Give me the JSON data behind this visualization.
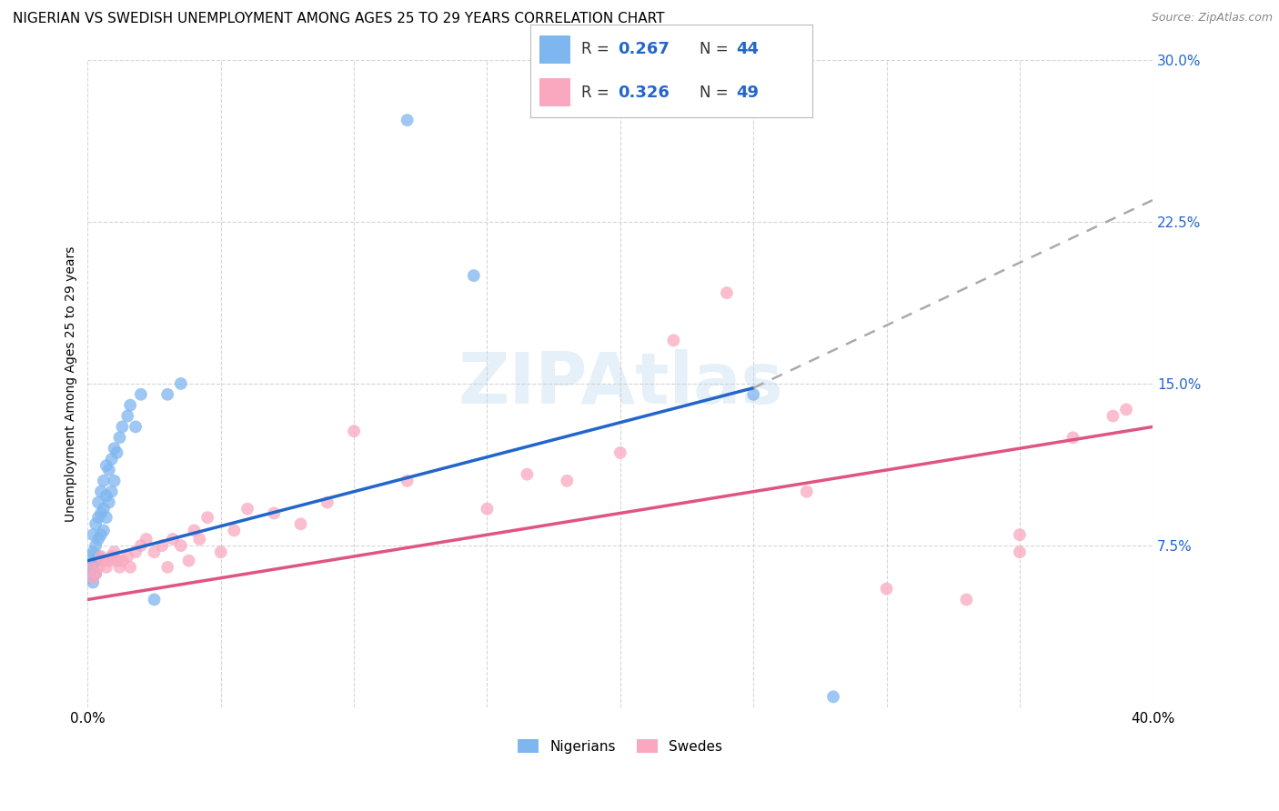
{
  "title": "NIGERIAN VS SWEDISH UNEMPLOYMENT AMONG AGES 25 TO 29 YEARS CORRELATION CHART",
  "source": "Source: ZipAtlas.com",
  "ylabel": "Unemployment Among Ages 25 to 29 years",
  "xlim": [
    0.0,
    0.4
  ],
  "ylim": [
    0.0,
    0.3
  ],
  "xticks": [
    0.0,
    0.05,
    0.1,
    0.15,
    0.2,
    0.25,
    0.3,
    0.35,
    0.4
  ],
  "yticks": [
    0.0,
    0.075,
    0.15,
    0.225,
    0.3
  ],
  "legend_R1": "0.267",
  "legend_N1": "44",
  "legend_R2": "0.326",
  "legend_N2": "49",
  "nigerians_color": "#7EB6F0",
  "swedes_color": "#F9A8C0",
  "trend_nigeria_color": "#2266CC",
  "trend_sweden_color": "#E05580",
  "trend_nigeria_solid_end": 0.25,
  "nigeria_trend_start_y": 0.068,
  "nigeria_trend_end_y": 0.148,
  "nigeria_trend_x_start": 0.0,
  "nigeria_trend_x_solid_end": 0.25,
  "nigeria_trend_x_dashed_end": 0.4,
  "nigeria_trend_dashed_end_y": 0.235,
  "sweden_trend_start_y": 0.05,
  "sweden_trend_end_y": 0.13,
  "sweden_trend_x_start": 0.0,
  "sweden_trend_x_end": 0.4,
  "background_color": "#FFFFFF",
  "grid_color": "#CCCCCC",
  "title_fontsize": 11,
  "axis_label_fontsize": 10,
  "tick_fontsize": 11,
  "watermark_text": "ZIPAtlas",
  "nigerians_x": [
    0.001,
    0.001,
    0.001,
    0.002,
    0.002,
    0.002,
    0.002,
    0.003,
    0.003,
    0.003,
    0.003,
    0.004,
    0.004,
    0.004,
    0.004,
    0.005,
    0.005,
    0.005,
    0.006,
    0.006,
    0.006,
    0.007,
    0.007,
    0.007,
    0.008,
    0.008,
    0.009,
    0.009,
    0.01,
    0.01,
    0.011,
    0.012,
    0.013,
    0.015,
    0.016,
    0.018,
    0.02,
    0.025,
    0.03,
    0.035,
    0.12,
    0.145,
    0.25,
    0.28
  ],
  "nigerians_y": [
    0.06,
    0.065,
    0.07,
    0.058,
    0.065,
    0.072,
    0.08,
    0.062,
    0.068,
    0.075,
    0.085,
    0.07,
    0.078,
    0.088,
    0.095,
    0.08,
    0.09,
    0.1,
    0.082,
    0.092,
    0.105,
    0.088,
    0.098,
    0.112,
    0.095,
    0.11,
    0.1,
    0.115,
    0.105,
    0.12,
    0.118,
    0.125,
    0.13,
    0.135,
    0.14,
    0.13,
    0.145,
    0.05,
    0.145,
    0.15,
    0.272,
    0.2,
    0.145,
    0.005
  ],
  "swedes_x": [
    0.001,
    0.002,
    0.003,
    0.004,
    0.005,
    0.006,
    0.007,
    0.008,
    0.009,
    0.01,
    0.011,
    0.012,
    0.013,
    0.015,
    0.016,
    0.018,
    0.02,
    0.022,
    0.025,
    0.028,
    0.03,
    0.032,
    0.035,
    0.038,
    0.04,
    0.042,
    0.045,
    0.05,
    0.055,
    0.06,
    0.07,
    0.08,
    0.09,
    0.1,
    0.12,
    0.15,
    0.165,
    0.18,
    0.2,
    0.22,
    0.24,
    0.27,
    0.3,
    0.33,
    0.35,
    0.37,
    0.385,
    0.35,
    0.39
  ],
  "swedes_y": [
    0.065,
    0.06,
    0.062,
    0.065,
    0.07,
    0.068,
    0.065,
    0.068,
    0.07,
    0.072,
    0.068,
    0.065,
    0.068,
    0.07,
    0.065,
    0.072,
    0.075,
    0.078,
    0.072,
    0.075,
    0.065,
    0.078,
    0.075,
    0.068,
    0.082,
    0.078,
    0.088,
    0.072,
    0.082,
    0.092,
    0.09,
    0.085,
    0.095,
    0.128,
    0.105,
    0.092,
    0.108,
    0.105,
    0.118,
    0.17,
    0.192,
    0.1,
    0.055,
    0.05,
    0.072,
    0.125,
    0.135,
    0.08,
    0.138
  ]
}
